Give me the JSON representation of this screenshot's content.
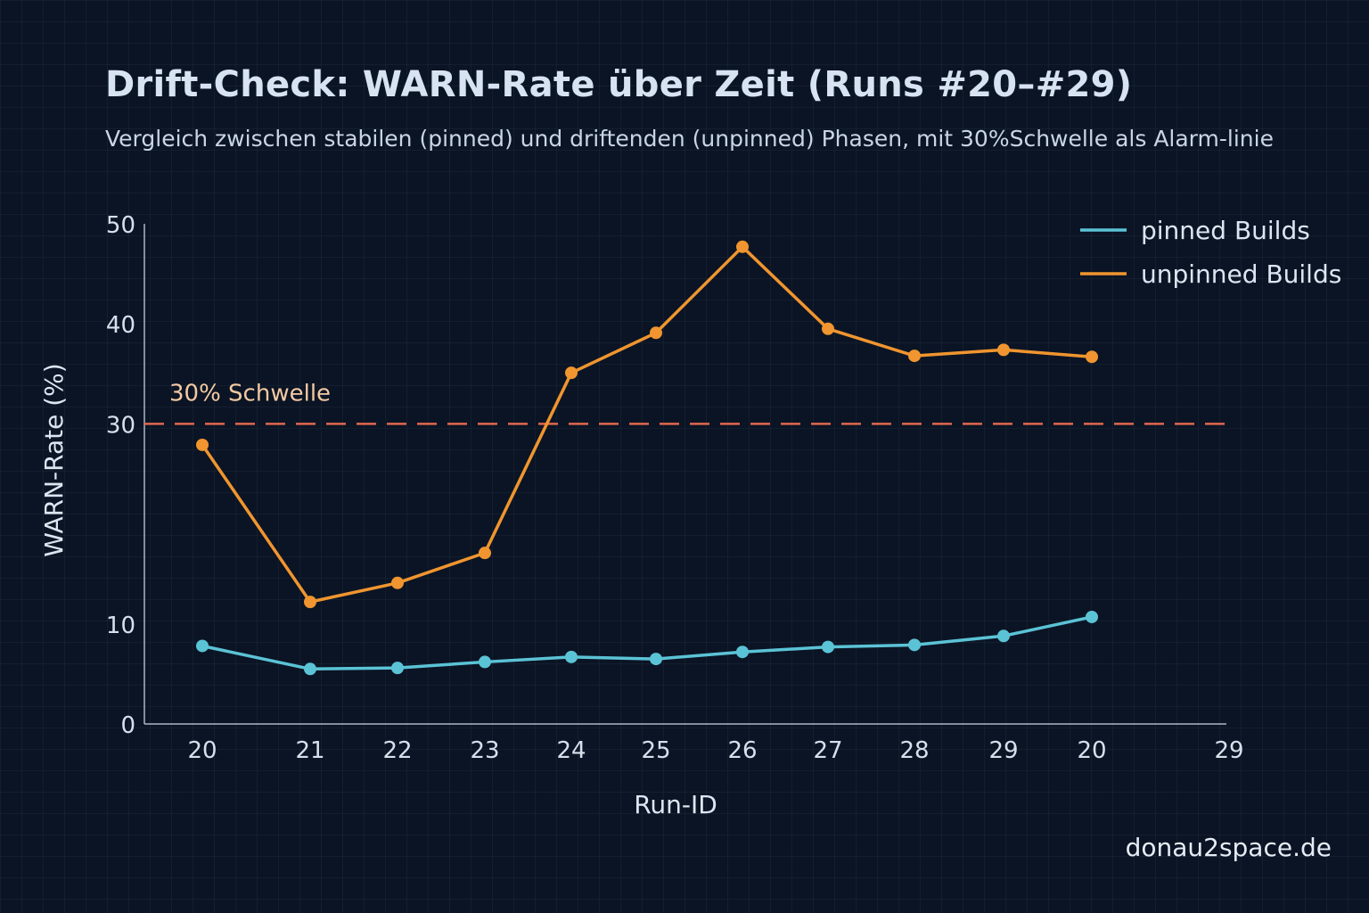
{
  "chart_data": {
    "type": "line",
    "title": "Drift-Check: WARN-Rate über Zeit (Runs #20–#29)",
    "subtitle": "Vergleich zwischen stabilen (pinned) und driftenden (unpinned) Phasen, mit 30%Schwelle als Alarm-linie",
    "xlabel": "Run-ID",
    "ylabel": "WARN-Rate (%)",
    "ylim": [
      0,
      50
    ],
    "y_ticks": [
      "0",
      "10",
      "30",
      "40",
      "50"
    ],
    "y_tick_values": [
      0,
      10,
      30,
      40,
      50
    ],
    "categories": [
      "20",
      "21",
      "22",
      "23",
      "24",
      "25",
      "26",
      "27",
      "28",
      "29",
      "20"
    ],
    "extra_x_tick": "29",
    "series": [
      {
        "name": "pinned Builds",
        "color": "#5bc3d6",
        "values": [
          7.8,
          5.5,
          5.6,
          6.2,
          6.7,
          6.5,
          7.2,
          7.7,
          7.9,
          8.8,
          10.7
        ]
      },
      {
        "name": "unpinned Builds",
        "color": "#f0952f",
        "values": [
          27.9,
          12.2,
          14.1,
          17.1,
          35.1,
          39.1,
          47.7,
          39.5,
          36.8,
          37.4,
          36.7
        ]
      }
    ],
    "threshold": {
      "value": 30,
      "label": "30% Schwelle",
      "color": "#e0674e"
    },
    "legend_position": "top-right",
    "grid": true
  },
  "footer": {
    "watermark": "donau2space.de"
  }
}
